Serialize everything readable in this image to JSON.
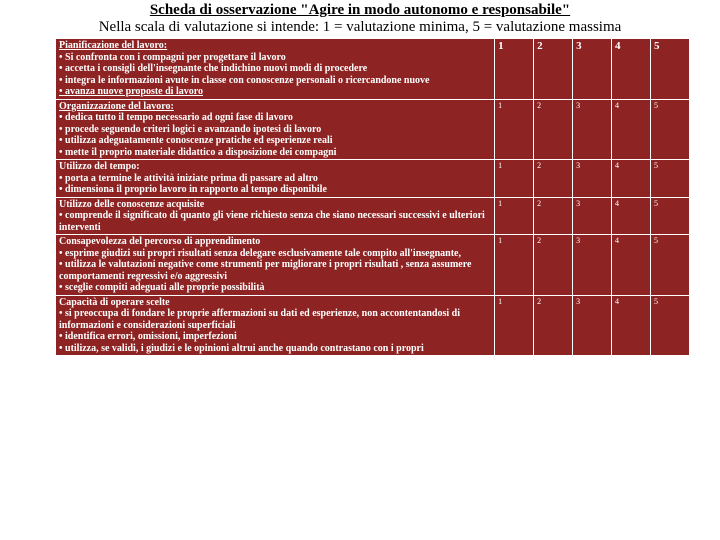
{
  "header": {
    "title": "Scheda di osservazione \"Agire in modo autonomo e responsabile\"",
    "subtitle": "Nella scala di valutazione si intende: 1 = valutazione minima, 5 = valutazione massima"
  },
  "scale": {
    "c1": "1",
    "c2": "2",
    "c3": "3",
    "c4": "4",
    "c5": "5"
  },
  "rows": {
    "r0": {
      "head": "Pianificazione del lavoro:",
      "b1": "• Si confronta con i compagni per progettare il lavoro",
      "b2": "• accetta i consigli dell'insegnante che indichino nuovi modi di procedere",
      "b3": "• integra le informazioni avute in classe con conoscenze personali o ricercandone nuove",
      "b4": "• avanza nuove proposte di lavoro"
    },
    "r1": {
      "head": "Organizzazione del lavoro:",
      "b1": "• dedica tutto il tempo necessario ad ogni fase di lavoro",
      "b2": "• procede seguendo criteri logici e avanzando ipotesi di lavoro",
      "b3": "• utilizza adeguatamente conoscenze pratiche ed esperienze reali",
      "b4": "• mette il proprio materiale didattico a disposizione dei compagni"
    },
    "r2": {
      "head": "Utilizzo del tempo:",
      "b1": "• porta a termine le attività iniziate prima di passare ad altro",
      "b2": "• dimensiona il proprio lavoro in rapporto al tempo disponibile"
    },
    "r3": {
      "head": "Utilizzo delle conoscenze acquisite",
      "b1": "• comprende il significato di quanto gli viene richiesto senza che siano necessari successivi e ulteriori interventi"
    },
    "r4": {
      "head": "Consapevolezza del percorso di apprendimento",
      "b1": "• esprime giudizi sui propri risultati senza delegare esclusivamente tale compito all'insegnante,",
      "b2": "• utilizza le valutazioni negative come strumenti per migliorare i propri risultati , senza assumere comportamenti regressivi e/o aggressivi",
      "b3": "• sceglie compiti adeguati alle proprie possibilità"
    },
    "r5": {
      "head": "Capacità di operare scelte",
      "b1": "• si preoccupa di fondare le proprie affermazioni su dati ed esperienze, non accontentandosi di informazioni e considerazioni superficiali",
      "b2": "• identifica errori, omissioni, imperfezioni",
      "b3": "• utilizza, se validi, i giudizi e le opinioni altrui anche quando contrastano con i propri"
    }
  }
}
